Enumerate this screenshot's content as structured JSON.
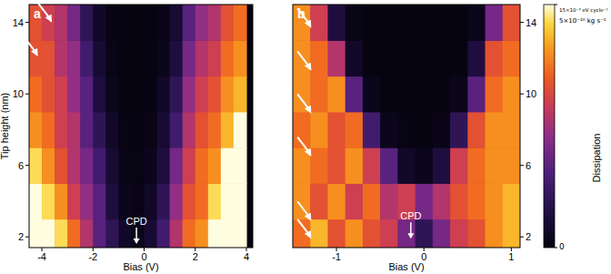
{
  "chart_data": [
    {
      "type": "heatmap",
      "title": "a",
      "x_label": "Bias (V)",
      "y_label": "Tip height (nm)",
      "xlim": [
        -4.5,
        4.25
      ],
      "ylim": [
        1.4,
        15.0
      ],
      "xticks": [
        -4,
        -2,
        0,
        2,
        4
      ],
      "yticks": [
        2,
        6,
        10,
        14
      ],
      "x": [
        -4.25,
        -3.75,
        -3.25,
        -2.75,
        -2.25,
        -1.75,
        -1.25,
        -0.75,
        -0.25,
        0.25,
        0.75,
        1.25,
        1.75,
        2.25,
        2.75,
        3.25,
        3.75
      ],
      "y": [
        2,
        4,
        6,
        8,
        10,
        12,
        14
      ],
      "z": [
        [
          15,
          15,
          14,
          11,
          8,
          5,
          3,
          1,
          0.5,
          1.5,
          4,
          8,
          11,
          12,
          15,
          15,
          15
        ],
        [
          15,
          14,
          12,
          9,
          7,
          5,
          2,
          0.5,
          0.3,
          1,
          3,
          7,
          10,
          11,
          14,
          15,
          15
        ],
        [
          14,
          12,
          10,
          8,
          6,
          4,
          1.5,
          0.3,
          0.2,
          0.5,
          2,
          6,
          9,
          11,
          12,
          15,
          15
        ],
        [
          12,
          11,
          9,
          8,
          5,
          3,
          1,
          0.2,
          0.1,
          0.3,
          1.5,
          4,
          8,
          10,
          11,
          13,
          15
        ],
        [
          11,
          10,
          9,
          7,
          5,
          2,
          0.5,
          0.1,
          0.1,
          0.2,
          1,
          3,
          7,
          9,
          10,
          12,
          13
        ],
        [
          10,
          10,
          8,
          7,
          4,
          1.5,
          0.3,
          0.1,
          0.1,
          0.1,
          0.5,
          2,
          6,
          8,
          9,
          11,
          12
        ],
        [
          10,
          9,
          8,
          6,
          3,
          1,
          0.2,
          0.1,
          0.1,
          0.1,
          0.3,
          1.5,
          5,
          7,
          8,
          10,
          11
        ]
      ],
      "annotations": [
        {
          "text": "CPD",
          "x": -0.3,
          "y": 1.6
        }
      ],
      "arrows": [
        {
          "x": -4.3,
          "y": 12.4
        },
        {
          "x": -3.75,
          "y": 14.3
        }
      ]
    },
    {
      "type": "heatmap",
      "title": "b",
      "x_label": "Bias (V)",
      "xlim": [
        -1.5,
        1.1
      ],
      "ylim": [
        1.4,
        15.0
      ],
      "xticks": [
        -1,
        0,
        1
      ],
      "yticks": [
        2,
        6,
        10,
        14
      ],
      "x": [
        -1.4,
        -1.2,
        -1.0,
        -0.8,
        -0.6,
        -0.4,
        -0.2,
        0,
        0.2,
        0.4,
        0.6,
        0.8,
        1.0
      ],
      "y": [
        2,
        4,
        6,
        8,
        10,
        12,
        14
      ],
      "z": [
        [
          11,
          13,
          10,
          12,
          10,
          9,
          6,
          3,
          6,
          9,
          10,
          12,
          13
        ],
        [
          12,
          10,
          12,
          9,
          11,
          8,
          9,
          6,
          8,
          10,
          11,
          12,
          13
        ],
        [
          12,
          11,
          10,
          12,
          9,
          5,
          1,
          0.5,
          2,
          9,
          11,
          12,
          12
        ],
        [
          11,
          12,
          10,
          11,
          4,
          0.5,
          0.2,
          0.1,
          0.3,
          3,
          10,
          12,
          12
        ],
        [
          12,
          11,
          12,
          5,
          0.5,
          0.1,
          0.1,
          0.1,
          0.1,
          0.5,
          5,
          11,
          12
        ],
        [
          12,
          11,
          8,
          1,
          0.1,
          0.1,
          0.1,
          0.1,
          0.1,
          0.1,
          2,
          10,
          11
        ],
        [
          12,
          9,
          2,
          0.3,
          0.1,
          0.1,
          0.1,
          0.1,
          0.1,
          0.1,
          0.5,
          6,
          10
        ]
      ],
      "annotations": [
        {
          "text": "CPD",
          "x": -0.15,
          "y": 1.9
        }
      ],
      "arrows": [
        {
          "x": -1.33,
          "y": 14.0
        },
        {
          "x": -1.33,
          "y": 11.6
        },
        {
          "x": -1.33,
          "y": 9.2
        },
        {
          "x": -1.33,
          "y": 6.8
        },
        {
          "x": -1.33,
          "y": 3.2
        },
        {
          "x": -1.33,
          "y": 2.2
        }
      ],
      "colorbar": {
        "label": "Dissipation",
        "range": [
          0,
          15
        ],
        "ticks": [
          0,
          {
            "value": 15,
            "label": "15×10⁻³ eV cycle⁻¹"
          }
        ],
        "secondary_label": "5×10⁻¹⁰ kg s⁻¹"
      }
    }
  ]
}
